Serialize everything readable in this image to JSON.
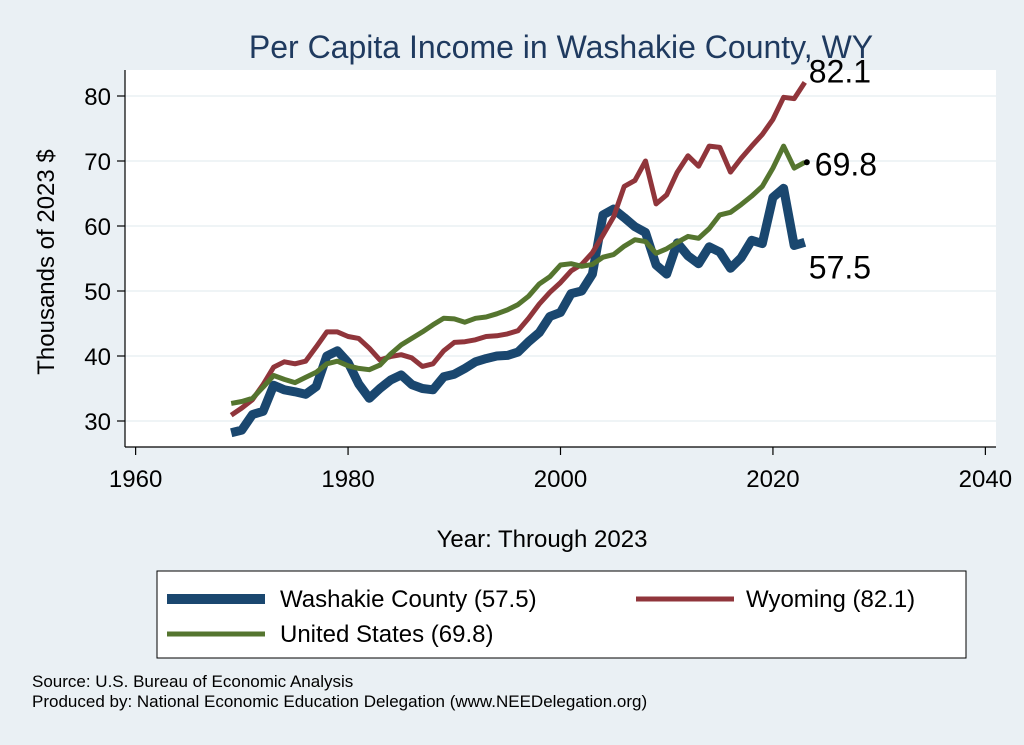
{
  "chart_data": {
    "type": "line",
    "title": "Per Capita Income in Washakie County, WY",
    "xlabel": "Year: Through 2023",
    "ylabel": "Thousands of 2023 $",
    "xlim": [
      1959,
      2041
    ],
    "ylim": [
      26,
      84
    ],
    "xticks": [
      1960,
      1980,
      2000,
      2020,
      2040
    ],
    "yticks": [
      30,
      40,
      50,
      60,
      70,
      80
    ],
    "grid": true,
    "legend_position": "bottom",
    "x": [
      1969,
      1970,
      1971,
      1972,
      1973,
      1974,
      1975,
      1976,
      1977,
      1978,
      1979,
      1980,
      1981,
      1982,
      1983,
      1984,
      1985,
      1986,
      1987,
      1988,
      1989,
      1990,
      1991,
      1992,
      1993,
      1994,
      1995,
      1996,
      1997,
      1998,
      1999,
      2000,
      2001,
      2002,
      2003,
      2004,
      2005,
      2006,
      2007,
      2008,
      2009,
      2010,
      2011,
      2012,
      2013,
      2014,
      2015,
      2016,
      2017,
      2018,
      2019,
      2020,
      2021,
      2022,
      2023
    ],
    "series": [
      {
        "name": "Washakie County (57.5)",
        "color": "#1a476f",
        "end_label": "57.5",
        "values": [
          28.2,
          28.6,
          31.0,
          31.5,
          35.5,
          34.8,
          34.5,
          34.1,
          35.3,
          40.0,
          40.8,
          39.0,
          35.7,
          33.5,
          35.0,
          36.3,
          37.1,
          35.6,
          35.0,
          34.8,
          36.8,
          37.2,
          38.1,
          39.1,
          39.6,
          40.0,
          40.1,
          40.6,
          42.2,
          43.6,
          46.1,
          46.7,
          49.6,
          50.0,
          52.6,
          61.7,
          62.6,
          61.3,
          59.9,
          59.0,
          54.0,
          52.6,
          57.4,
          55.4,
          54.2,
          56.8,
          56.0,
          53.5,
          55.1,
          57.8,
          57.3,
          64.4,
          65.8,
          57.0,
          57.5
        ]
      },
      {
        "name": "Wyoming (82.1)",
        "color": "#90353b",
        "end_label": "82.1",
        "values": [
          30.9,
          32.0,
          33.3,
          35.6,
          38.3,
          39.1,
          38.8,
          39.2,
          41.4,
          43.7,
          43.7,
          43.0,
          42.7,
          41.2,
          39.4,
          39.9,
          40.2,
          39.7,
          38.4,
          38.8,
          40.8,
          42.1,
          42.2,
          42.5,
          43.0,
          43.1,
          43.4,
          43.9,
          45.8,
          48.0,
          49.8,
          51.3,
          53.1,
          54.1,
          55.9,
          58.6,
          61.4,
          66.1,
          67.0,
          70.0,
          63.4,
          64.8,
          68.3,
          70.8,
          69.2,
          72.3,
          72.1,
          68.3,
          70.4,
          72.3,
          74.1,
          76.4,
          79.8,
          79.6,
          82.1
        ]
      },
      {
        "name": "United States (69.8)",
        "color": "#55752f",
        "end_label": "69.8",
        "values": [
          32.7,
          33.0,
          33.5,
          35.2,
          37.0,
          36.4,
          35.9,
          36.7,
          37.5,
          38.8,
          39.2,
          38.5,
          38.1,
          37.9,
          38.6,
          40.3,
          41.7,
          42.7,
          43.7,
          44.8,
          45.8,
          45.7,
          45.2,
          45.8,
          46.0,
          46.5,
          47.1,
          47.9,
          49.2,
          51.1,
          52.2,
          54.0,
          54.2,
          53.8,
          54.1,
          55.2,
          55.6,
          56.9,
          57.9,
          57.6,
          55.8,
          56.5,
          57.5,
          58.4,
          58.1,
          59.6,
          61.7,
          62.1,
          63.3,
          64.6,
          66.1,
          68.9,
          72.3,
          68.9,
          69.8
        ]
      }
    ]
  },
  "source_lines": [
    "Source: U.S. Bureau of Economic Analysis",
    "Produced by: National Economic Education Delegation (www.NEEDelegation.org)"
  ]
}
